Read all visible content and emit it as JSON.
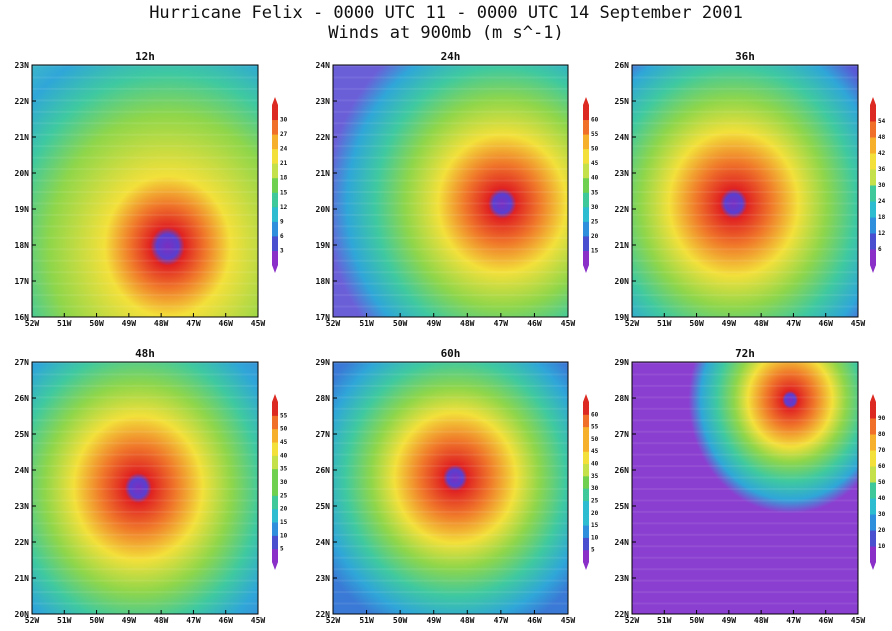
{
  "header": {
    "title": "Hurricane Felix - 0000 UTC 11 - 0000 UTC 14 September 2001",
    "subtitle": "Winds at 900mb (m s^-1)"
  },
  "panels": [
    {
      "title": "12h",
      "xticks": [
        "52W",
        "51W",
        "50W",
        "49W",
        "48W",
        "47W",
        "46W",
        "45W"
      ],
      "yticks": [
        "16N",
        "17N",
        "18N",
        "19N",
        "20N",
        "21N",
        "22N",
        "23N"
      ],
      "colorbar": [
        "3",
        "6",
        "9",
        "12",
        "15",
        "18",
        "21",
        "24",
        "27",
        "30"
      ]
    },
    {
      "title": "24h",
      "xticks": [
        "52W",
        "51W",
        "50W",
        "49W",
        "48W",
        "47W",
        "46W",
        "45W"
      ],
      "yticks": [
        "17N",
        "18N",
        "19N",
        "20N",
        "21N",
        "22N",
        "23N",
        "24N"
      ],
      "colorbar": [
        "15",
        "20",
        "25",
        "30",
        "35",
        "40",
        "45",
        "50",
        "55",
        "60"
      ]
    },
    {
      "title": "36h",
      "xticks": [
        "52W",
        "51W",
        "50W",
        "49W",
        "48W",
        "47W",
        "46W",
        "45W"
      ],
      "yticks": [
        "19N",
        "20N",
        "21N",
        "22N",
        "23N",
        "24N",
        "25N",
        "26N"
      ],
      "colorbar": [
        "6",
        "12",
        "18",
        "24",
        "30",
        "36",
        "42",
        "48",
        "54"
      ]
    },
    {
      "title": "48h",
      "xticks": [
        "52W",
        "51W",
        "50W",
        "49W",
        "48W",
        "47W",
        "46W",
        "45W"
      ],
      "yticks": [
        "20N",
        "21N",
        "22N",
        "23N",
        "24N",
        "25N",
        "26N",
        "27N"
      ],
      "colorbar": [
        "5",
        "10",
        "15",
        "20",
        "25",
        "30",
        "35",
        "40",
        "45",
        "50",
        "55"
      ]
    },
    {
      "title": "60h",
      "xticks": [
        "52W",
        "51W",
        "50W",
        "49W",
        "48W",
        "47W",
        "46W",
        "45W"
      ],
      "yticks": [
        "22N",
        "23N",
        "24N",
        "25N",
        "26N",
        "27N",
        "28N",
        "29N"
      ],
      "colorbar": [
        "5",
        "10",
        "15",
        "20",
        "25",
        "30",
        "35",
        "40",
        "45",
        "50",
        "55",
        "60"
      ]
    },
    {
      "title": "72h",
      "xticks": [
        "52W",
        "51W",
        "50W",
        "49W",
        "48W",
        "47W",
        "46W",
        "45W"
      ],
      "yticks": [
        "22N",
        "23N",
        "24N",
        "25N",
        "26N",
        "27N",
        "28N",
        "29N"
      ],
      "colorbar": [
        "10",
        "20",
        "30",
        "40",
        "50",
        "60",
        "70",
        "80",
        "90"
      ]
    }
  ]
}
